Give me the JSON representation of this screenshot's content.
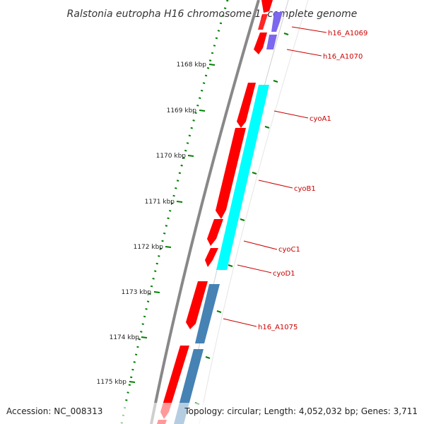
{
  "title": "Ralstonia eutropha H16 chromosome 1, complete genome",
  "footer": {
    "accession": "Accession: NC_008313",
    "summary": "Topology: circular; Length: 4,052,032 bp; Genes: 3,711"
  },
  "colors": {
    "backbone": "#888888",
    "cds": "#ff0000",
    "label": "#cc0000",
    "tick_major": "#008000",
    "tick_dots": "#008000",
    "cog_purple": "#7b68ee",
    "cog_cyan": "#00ffff",
    "cog_steel": "#4682b4"
  },
  "scale_ticks": [
    {
      "label": "1168 kbp",
      "kbp": 1168
    },
    {
      "label": "1169 kbp",
      "kbp": 1169
    },
    {
      "label": "1170 kbp",
      "kbp": 1170
    },
    {
      "label": "1171 kbp",
      "kbp": 1171
    },
    {
      "label": "1172 kbp",
      "kbp": 1172
    },
    {
      "label": "1173 kbp",
      "kbp": 1173
    },
    {
      "label": "1174 kbp",
      "kbp": 1174
    },
    {
      "label": "1175 kbp",
      "kbp": 1175
    }
  ],
  "gene_labels": [
    {
      "name": "h16_A1069"
    },
    {
      "name": "h16_A1070"
    },
    {
      "name": "cyoA1"
    },
    {
      "name": "cyoB1"
    },
    {
      "name": "cyoC1"
    },
    {
      "name": "cyoD1"
    },
    {
      "name": "h16_A1075"
    }
  ]
}
